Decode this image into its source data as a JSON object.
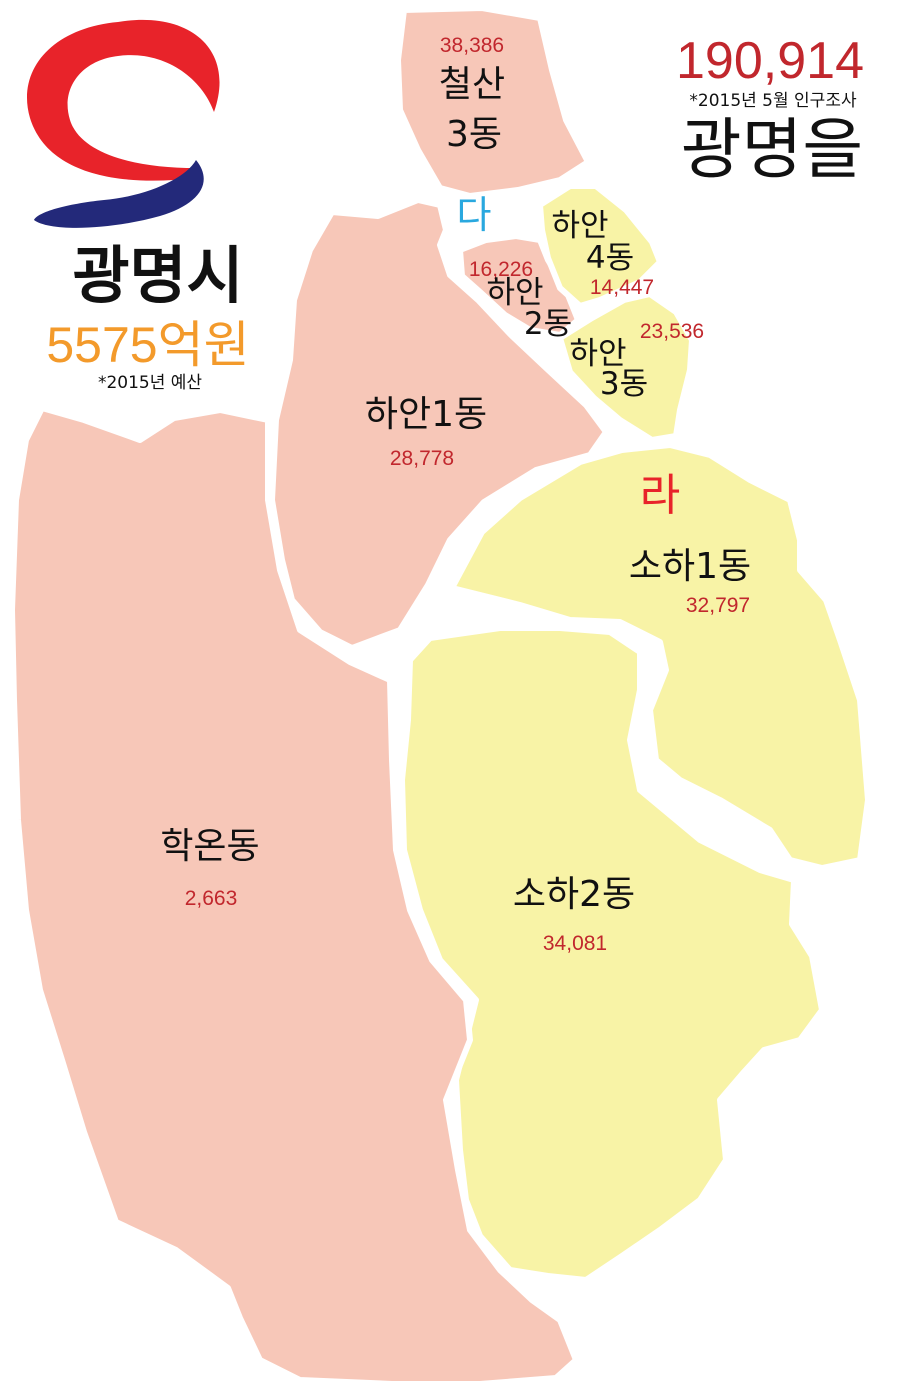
{
  "colors": {
    "district_da": "#f7c7b8",
    "district_ra": "#f8f3a6",
    "population_text": "#c1272d",
    "label_text": "#111111",
    "budget_text": "#f39a2b",
    "da_marker": "#29a8df",
    "ra_marker": "#e8232a",
    "logo_red": "#e8232a",
    "logo_blue": "#23297a"
  },
  "header": {
    "city_name": "광명시",
    "budget": "5575억원",
    "budget_note": "*2015년 예산",
    "total_population": "190,914",
    "census_note": "*2015년 5월 인구조사",
    "constituency": "광명을"
  },
  "logo": {
    "icon": "gwangmyeong-city-logo-icon"
  },
  "district_markers": {
    "da": "다",
    "ra": "라"
  },
  "dongs": [
    {
      "id": "cheolsan3",
      "district": "da",
      "name_line1": "철산",
      "name_line2": "3동",
      "population": "38,386"
    },
    {
      "id": "haan1",
      "district": "da",
      "name": "하안1동",
      "population": "28,778"
    },
    {
      "id": "haan2",
      "district": "da",
      "name_line1": "하안",
      "name_line2": "2동",
      "population": "16,226"
    },
    {
      "id": "haan4",
      "district": "ra",
      "name_line1": "하안",
      "name_line2": "4동",
      "population": "14,447"
    },
    {
      "id": "haan3",
      "district": "ra",
      "name_line1": "하안",
      "name_line2": "3동",
      "population": "23,536"
    },
    {
      "id": "soha1",
      "district": "ra",
      "name": "소하1동",
      "population": "32,797"
    },
    {
      "id": "soha2",
      "district": "ra",
      "name": "소하2동",
      "population": "34,081"
    },
    {
      "id": "hakon",
      "district": "da",
      "name": "학온동",
      "population": "2,663"
    }
  ]
}
